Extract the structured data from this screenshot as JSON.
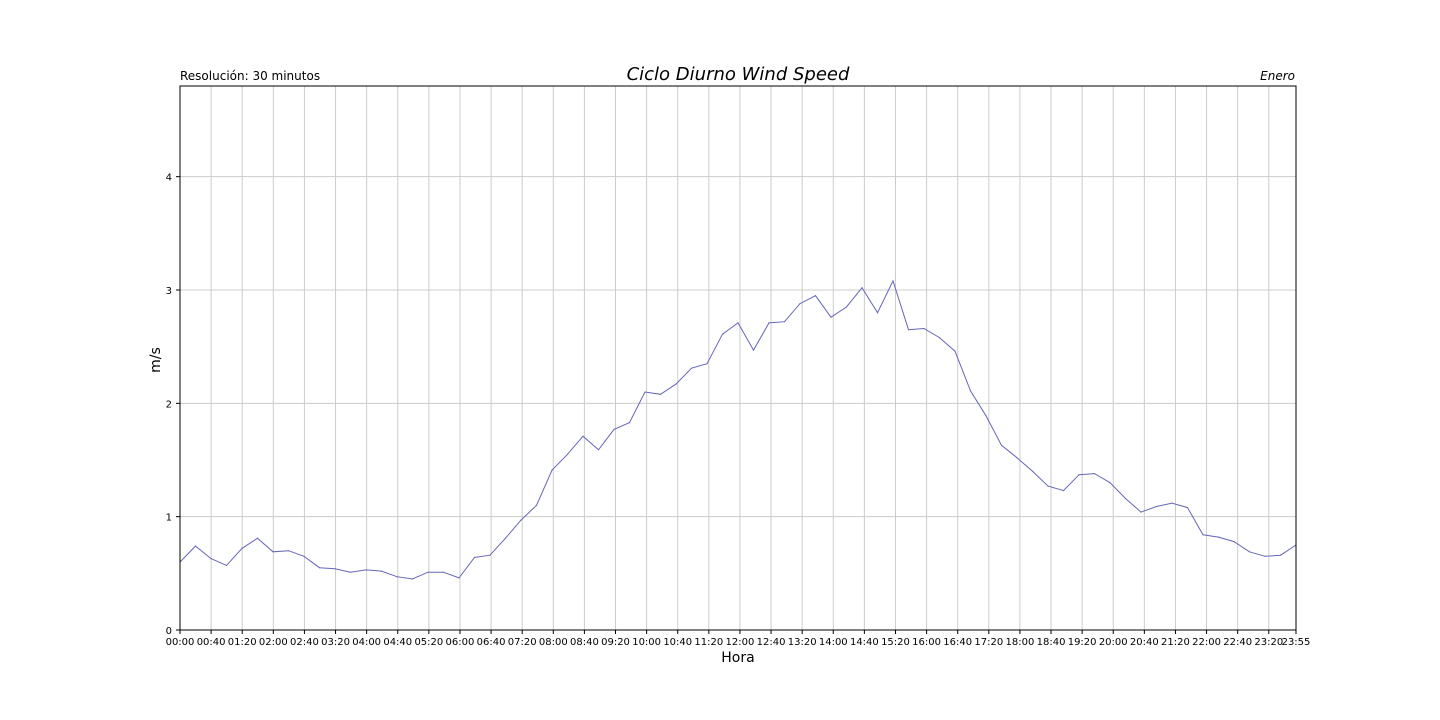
{
  "colors": {
    "line": "#6666bb",
    "grid": "#cccccc",
    "frame": "#000000"
  },
  "chart_data": {
    "type": "line",
    "title": "Ciclo Diurno Wind Speed",
    "subtitle": "Resolución: 30 minutos",
    "month": "Enero",
    "xlabel": "Hora",
    "ylabel": "m/s",
    "ylim": [
      0,
      4.8
    ],
    "y_ticks": [
      0,
      1,
      2,
      3,
      4
    ],
    "grid": true,
    "x_ticks": [
      "00:00",
      "00:40",
      "01:20",
      "02:00",
      "02:40",
      "03:20",
      "04:00",
      "04:40",
      "05:20",
      "06:00",
      "06:40",
      "07:20",
      "08:00",
      "08:40",
      "09:20",
      "10:00",
      "10:40",
      "11:20",
      "12:00",
      "12:40",
      "13:20",
      "14:00",
      "14:40",
      "15:20",
      "16:00",
      "16:40",
      "17:20",
      "18:00",
      "18:40",
      "19:20",
      "20:00",
      "20:40",
      "21:20",
      "22:00",
      "22:40",
      "23:20",
      "23:55"
    ],
    "series": [
      {
        "values": [
          0.6,
          0.74,
          0.63,
          0.57,
          0.72,
          0.81,
          0.69,
          0.7,
          0.65,
          0.55,
          0.54,
          0.51,
          0.53,
          0.52,
          0.47,
          0.45,
          0.51,
          0.51,
          0.46,
          0.64,
          0.66,
          0.81,
          0.97,
          1.1,
          1.41,
          1.55,
          1.71,
          1.59,
          1.77,
          1.83,
          2.1,
          2.08,
          2.17,
          2.31,
          2.35,
          2.61,
          2.71,
          2.47,
          2.71,
          2.72,
          2.88,
          2.95,
          2.76,
          2.85,
          3.02,
          2.8,
          3.08,
          2.65,
          2.66,
          2.58,
          2.46,
          2.11,
          1.89,
          1.63,
          1.52,
          1.4,
          1.27,
          1.23,
          1.37,
          1.38,
          1.3,
          1.16,
          1.04,
          1.09,
          1.12,
          1.08,
          0.84,
          0.82,
          0.78,
          0.69,
          0.65,
          0.66,
          0.75
        ]
      }
    ]
  }
}
